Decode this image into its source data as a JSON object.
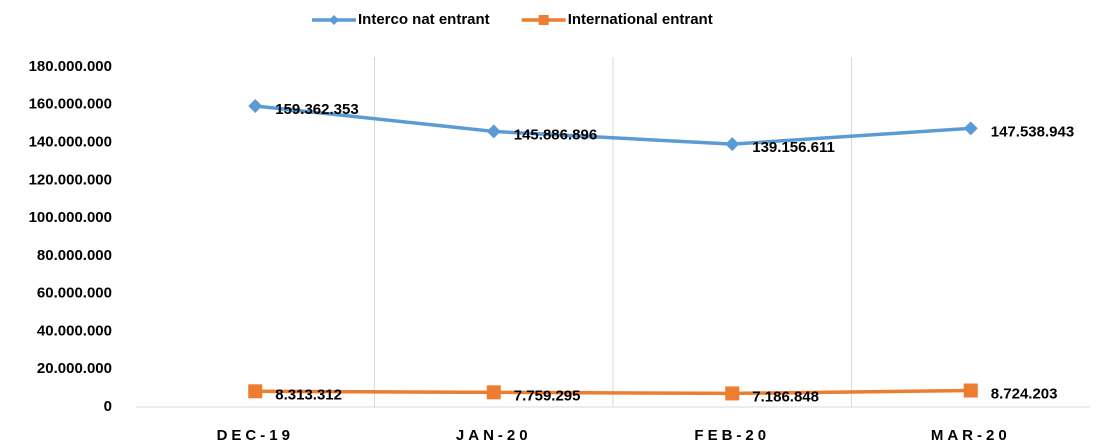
{
  "chart_data": {
    "type": "line",
    "categories": [
      "DEC-19",
      "JAN-20",
      "FEB-20",
      "MAR-20"
    ],
    "series": [
      {
        "name": "Interco nat entrant",
        "color": "#5b9bd5",
        "marker": "diamond",
        "values": [
          159362353,
          145886896,
          139156611,
          147538943
        ],
        "value_labels": [
          "159.362.353",
          "145.886.896",
          "139.156.611",
          "147.538.943"
        ]
      },
      {
        "name": "International entrant",
        "color": "#ed7d31",
        "marker": "square",
        "values": [
          8313312,
          7759295,
          7186848,
          8724203
        ],
        "value_labels": [
          "8.313.312",
          "7.759.295",
          "7.186.848",
          "8.724.203"
        ]
      }
    ],
    "ylim": [
      0,
      180000000
    ],
    "yticks": [
      0,
      {
        "value": 20000000,
        "label": "20.000.000"
      },
      {
        "value": 40000000,
        "label": "40.000.000"
      },
      {
        "value": 60000000,
        "label": "60.000.000"
      },
      {
        "value": 80000000,
        "label": "80.000.000"
      },
      {
        "value": 100000000,
        "label": "100.000.000"
      },
      {
        "value": 120000000,
        "label": "120.000.000"
      },
      {
        "value": 140000000,
        "label": "140.000.000"
      },
      {
        "value": 160000000,
        "label": "160.000.000"
      },
      {
        "value": 180000000,
        "label": "180.000.000"
      }
    ],
    "legend": "top"
  }
}
